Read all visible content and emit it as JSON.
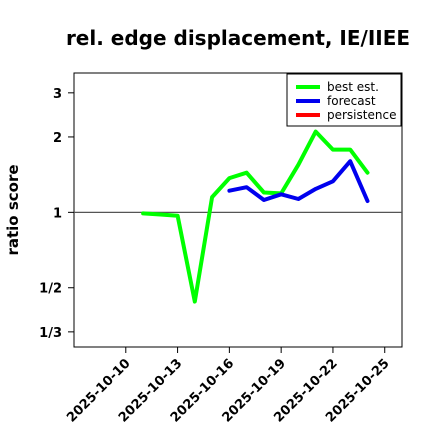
{
  "chart_data": {
    "type": "line",
    "title": "rel. edge displacement, IE/IIEE",
    "xlabel": "",
    "ylabel": "ratio score",
    "y_scale": "log",
    "ylim": [
      0.29,
      3.6
    ],
    "xlim": [
      "2025-10-07",
      "2025-10-26"
    ],
    "y_ticks": [
      {
        "value": 0.3333,
        "label": "1/3"
      },
      {
        "value": 0.5,
        "label": "1/2"
      },
      {
        "value": 1,
        "label": "1"
      },
      {
        "value": 2,
        "label": "2"
      },
      {
        "value": 3,
        "label": "3"
      }
    ],
    "x_ticks": [
      {
        "date": "2025-10-10",
        "label": "2025-10-10",
        "color": "#000000"
      },
      {
        "date": "2025-10-13",
        "label": "2025-10-13",
        "color": "#000000"
      },
      {
        "date": "2025-10-16",
        "label": "2025-10-16",
        "color": "#228b22"
      },
      {
        "date": "2025-10-19",
        "label": "2025-10-19",
        "color": "#000000"
      },
      {
        "date": "2025-10-22",
        "label": "2025-10-22",
        "color": "#000000"
      },
      {
        "date": "2025-10-25",
        "label": "2025-10-25",
        "color": "#000000"
      }
    ],
    "reference_line": 1,
    "legend_position": "top-right",
    "series": [
      {
        "name": "best est.",
        "color": "#00ff00",
        "x": [
          "2025-10-11",
          "2025-10-12",
          "2025-10-13",
          "2025-10-14",
          "2025-10-15",
          "2025-10-16",
          "2025-10-17",
          "2025-10-18",
          "2025-10-19",
          "2025-10-20",
          "2025-10-21",
          "2025-10-22",
          "2025-10-23",
          "2025-10-24"
        ],
        "y": [
          0.99,
          0.98,
          0.97,
          0.44,
          1.15,
          1.37,
          1.44,
          1.2,
          1.19,
          1.55,
          2.1,
          1.78,
          1.78,
          1.44
        ]
      },
      {
        "name": "forecast",
        "color": "#0000ee",
        "x": [
          "2025-10-16",
          "2025-10-17",
          "2025-10-18",
          "2025-10-19",
          "2025-10-20",
          "2025-10-21",
          "2025-10-22",
          "2025-10-23",
          "2025-10-24"
        ],
        "y": [
          1.22,
          1.26,
          1.12,
          1.18,
          1.13,
          1.24,
          1.33,
          1.6,
          1.11
        ]
      },
      {
        "name": "persistence",
        "color": "#ff0000",
        "x": [],
        "y": []
      }
    ]
  }
}
